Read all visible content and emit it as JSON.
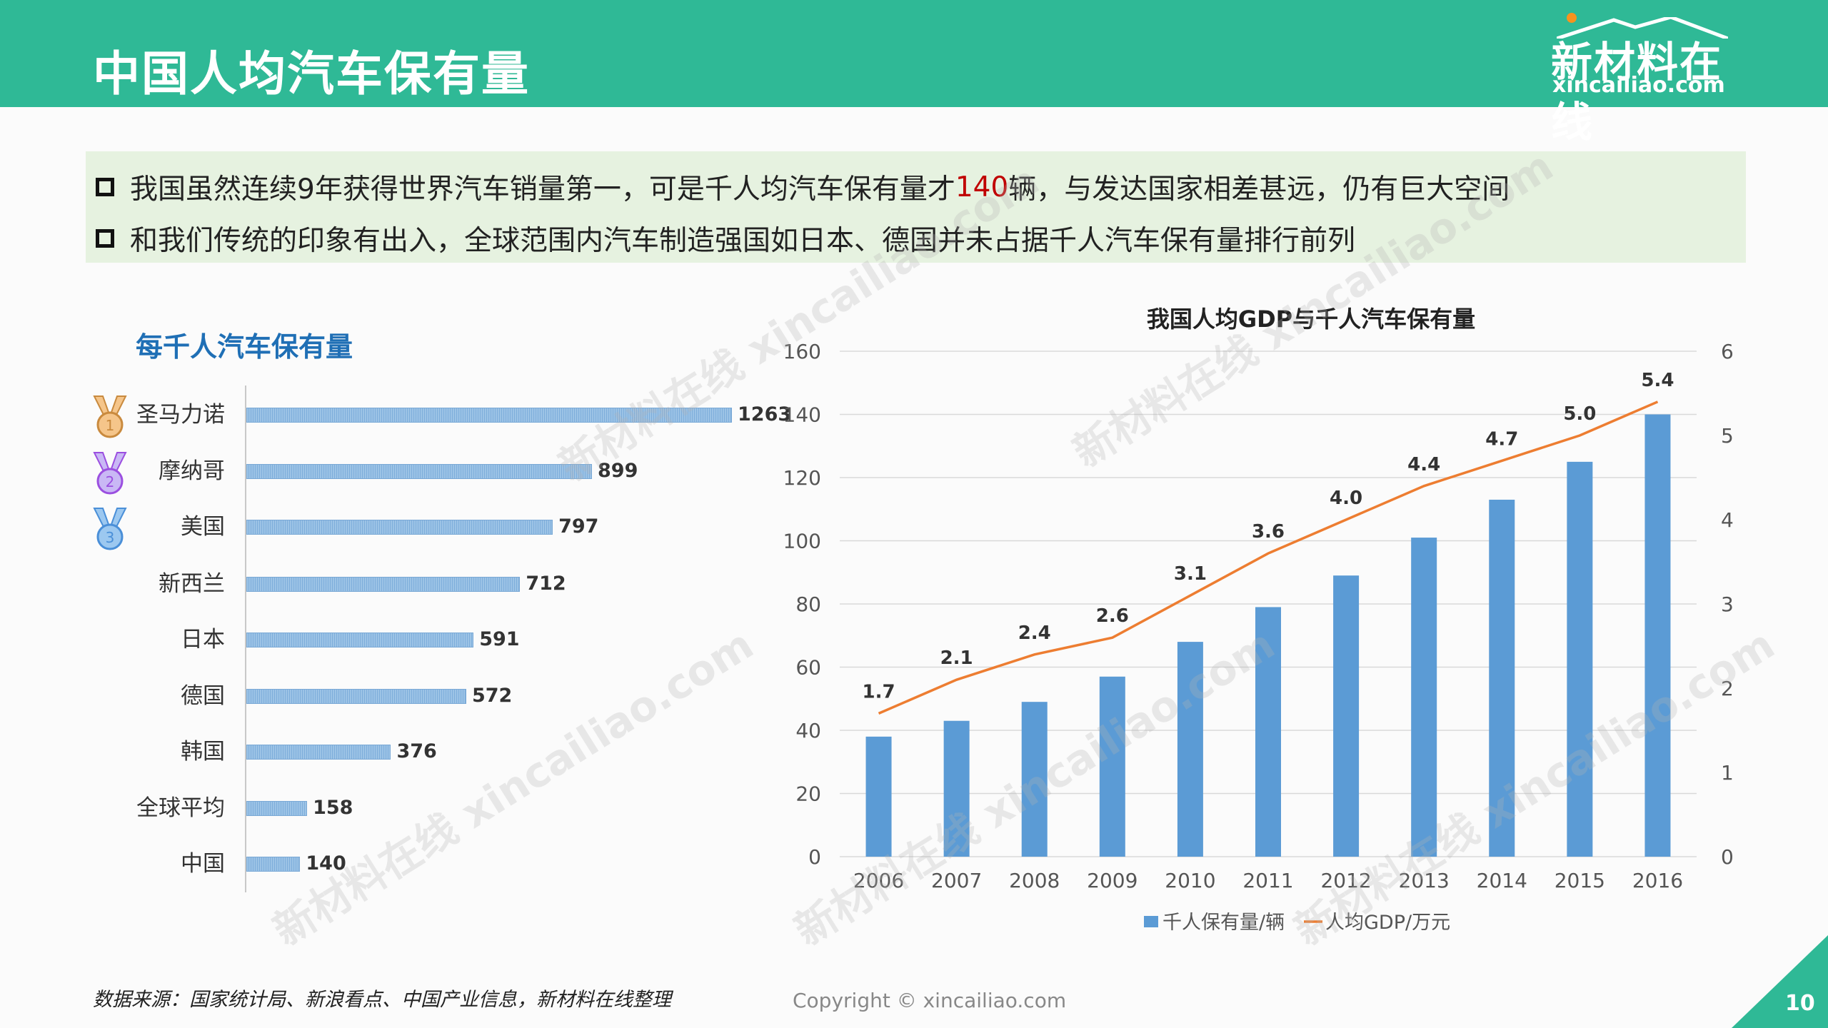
{
  "header": {
    "title": "中国人均汽车保有量",
    "logo_cn": "新材料在线",
    "logo_en": "xincailiao.com"
  },
  "bullets": [
    {
      "pre": "我国虽然连续9年获得世界汽车销量第一，可是千人均汽车保有量才",
      "highlight": "140",
      "post": "辆，与发达国家相差甚远，仍有巨大空间"
    },
    {
      "pre": "和我们传统的印象有出入，全球范围内汽车制造强国如日本、德国并未占据千人汽车保有量排行前列",
      "highlight": "",
      "post": ""
    }
  ],
  "watermark": "新材料在线 xincailiao.com",
  "chart_data": [
    {
      "type": "bar",
      "orientation": "horizontal",
      "title": "每千人汽车保有量",
      "categories": [
        "圣马力诺",
        "摩纳哥",
        "美国",
        "新西兰",
        "日本",
        "德国",
        "韩国",
        "全球平均",
        "中国"
      ],
      "values": [
        1263,
        899,
        797,
        712,
        591,
        572,
        376,
        158,
        140
      ],
      "medals": [
        1,
        2,
        3
      ],
      "color": "#9cc3e6"
    },
    {
      "type": "bar+line",
      "title": "我国人均GDP与千人汽车保有量",
      "categories": [
        "2006",
        "2007",
        "2008",
        "2009",
        "2010",
        "2011",
        "2012",
        "2013",
        "2014",
        "2015",
        "2016"
      ],
      "series": [
        {
          "name": "千人保有量/辆",
          "type": "bar",
          "axis": "left",
          "color": "#5b9bd5",
          "values": [
            38,
            43,
            49,
            57,
            68,
            79,
            89,
            101,
            113,
            125,
            140
          ]
        },
        {
          "name": "人均GDP/万元",
          "type": "line",
          "axis": "right",
          "color": "#ed7d31",
          "values": [
            1.7,
            2.1,
            2.4,
            2.6,
            3.1,
            3.6,
            4.0,
            4.4,
            4.7,
            5.0,
            5.4
          ],
          "labels": [
            "1.7",
            "2.1",
            "2.4",
            "2.6",
            "3.1",
            "3.6",
            "4.0",
            "4.4",
            "4.7",
            "5.0",
            "5.4"
          ]
        }
      ],
      "y_left": {
        "range": [
          0,
          160
        ],
        "ticks": [
          "0",
          "20",
          "40",
          "60",
          "80",
          "100",
          "120",
          "140",
          "160"
        ]
      },
      "y_right": {
        "range": [
          0,
          6
        ],
        "ticks": [
          "0",
          "1",
          "2",
          "3",
          "4",
          "5",
          "6"
        ]
      },
      "grid": true,
      "legend": "bottom"
    }
  ],
  "footer": {
    "source": "数据来源：国家统计局、新浪看点、中国产业信息，新材料在线整理",
    "copyright": "Copyright © xincailiao.com",
    "page": "10"
  }
}
